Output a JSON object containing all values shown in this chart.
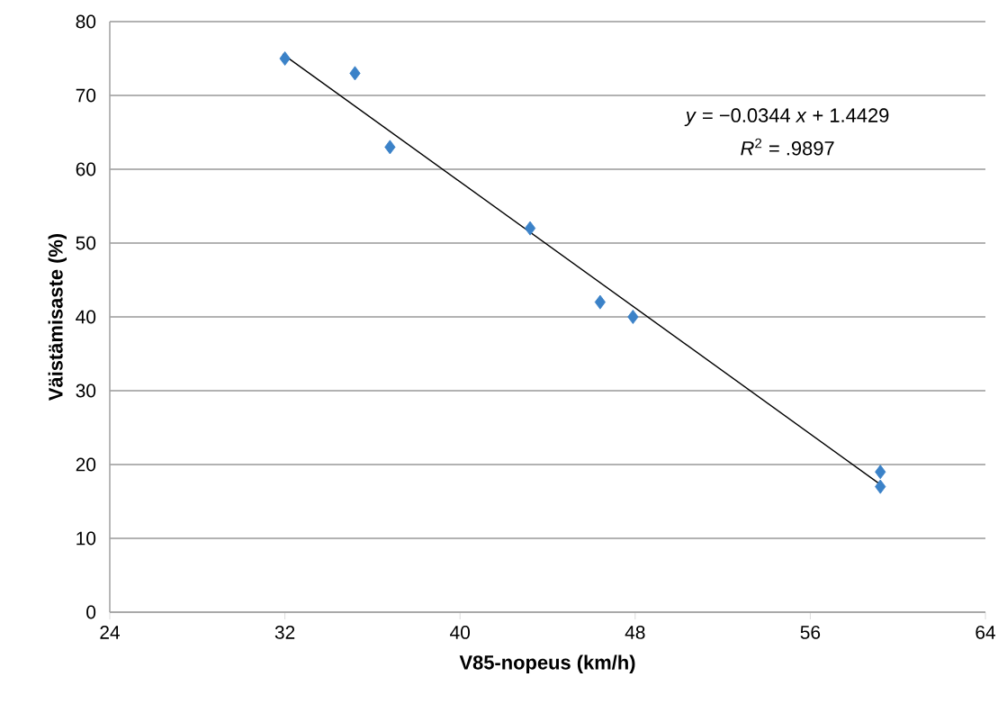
{
  "chart_data": {
    "type": "scatter",
    "xlabel": "V85-nopeus (km/h)",
    "ylabel": "Väistämisaste (%)",
    "xlim": [
      24,
      64
    ],
    "xticks": [
      24,
      32,
      40,
      48,
      56,
      64
    ],
    "ylim": [
      0,
      80
    ],
    "yticks": [
      0,
      10,
      20,
      30,
      40,
      50,
      60,
      70,
      80
    ],
    "grid": "y",
    "marker": "diamond",
    "annotations": [
      "*y* = −0.0344 *x* + 1.4429",
      "*R*$^{2}$ = .9897"
    ],
    "series": [
      {
        "color": "#3b82c8",
        "x": [
          32.0,
          35.2,
          36.8,
          43.2,
          46.4,
          47.9,
          59.2,
          59.2
        ],
        "values": [
          75,
          73,
          63,
          52,
          42,
          40,
          19,
          17
        ]
      },
      {
        "type": "line",
        "color": "#000000",
        "x": [
          31.9,
          59.2
        ],
        "values": [
          75.6,
          17.3
        ],
        "marker": "none",
        "line_style": "solid"
      }
    ]
  }
}
